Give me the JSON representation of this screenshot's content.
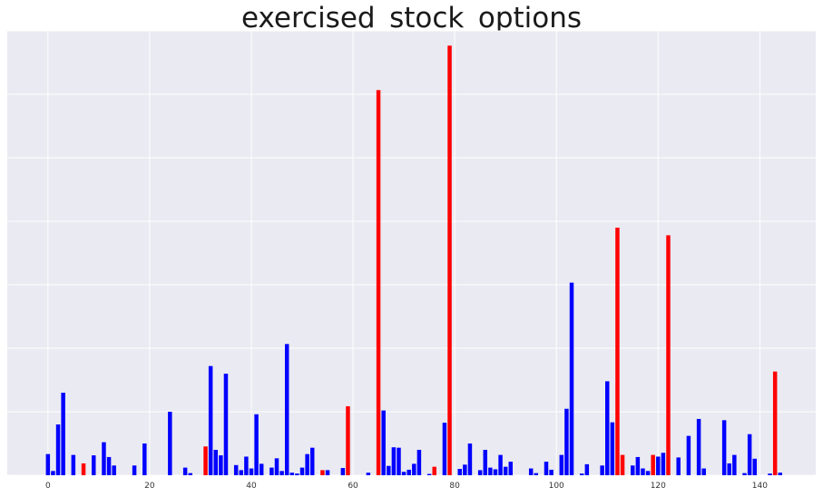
{
  "chart_data": {
    "type": "bar",
    "title": "exercised_stock_options",
    "xlabel": "",
    "ylabel": "",
    "x_ticks": [
      0,
      20,
      40,
      60,
      80,
      100,
      120,
      140
    ],
    "xlim": [
      -8,
      151
    ],
    "ylim": [
      0,
      1.05
    ],
    "grid": true,
    "y_tick_labels_shown": false,
    "colors": {
      "non_poi": "#0000ff",
      "poi": "#ff0000",
      "background": "#eaeaf2",
      "grid": "#ffffff"
    },
    "index": [
      0,
      1,
      2,
      3,
      5,
      7,
      9,
      11,
      12,
      13,
      17,
      19,
      24,
      27,
      28,
      31,
      32,
      33,
      34,
      35,
      37,
      38,
      39,
      40,
      41,
      42,
      44,
      45,
      46,
      47,
      48,
      49,
      50,
      51,
      52,
      54,
      55,
      58,
      59,
      63,
      65,
      66,
      67,
      68,
      69,
      70,
      71,
      72,
      73,
      75,
      76,
      78,
      79,
      81,
      82,
      83,
      85,
      86,
      87,
      88,
      89,
      90,
      91,
      95,
      96,
      98,
      99,
      101,
      102,
      103,
      105,
      106,
      109,
      110,
      111,
      112,
      113,
      115,
      116,
      117,
      118,
      119,
      120,
      121,
      122,
      124,
      126,
      128,
      129,
      133,
      134,
      135,
      137,
      138,
      139,
      142,
      143,
      144
    ],
    "values": [
      0.05,
      0.01,
      0.12,
      0.195,
      0.048,
      0.028,
      0.047,
      0.078,
      0.043,
      0.023,
      0.023,
      0.075,
      0.15,
      0.018,
      0.005,
      0.068,
      0.258,
      0.06,
      0.047,
      0.24,
      0.024,
      0.012,
      0.044,
      0.016,
      0.144,
      0.027,
      0.018,
      0.04,
      0.01,
      0.31,
      0.006,
      0.004,
      0.018,
      0.05,
      0.065,
      0.012,
      0.012,
      0.017,
      0.163,
      0.006,
      0.91,
      0.153,
      0.022,
      0.066,
      0.065,
      0.008,
      0.013,
      0.027,
      0.06,
      0.003,
      0.02,
      0.124,
      1.015,
      0.015,
      0.025,
      0.075,
      0.012,
      0.06,
      0.018,
      0.014,
      0.048,
      0.02,
      0.032,
      0.016,
      0.005,
      0.032,
      0.013,
      0.048,
      0.157,
      0.455,
      0.004,
      0.026,
      0.023,
      0.222,
      0.125,
      0.585,
      0.048,
      0.023,
      0.043,
      0.016,
      0.01,
      0.048,
      0.044,
      0.053,
      0.567,
      0.042,
      0.093,
      0.133,
      0.016,
      0.13,
      0.028,
      0.048,
      0.005,
      0.097,
      0.039,
      0.004,
      0.245,
      0.006
    ],
    "poi_index": [
      7,
      31,
      54,
      59,
      65,
      76,
      79,
      112,
      113,
      119,
      122,
      143
    ]
  }
}
